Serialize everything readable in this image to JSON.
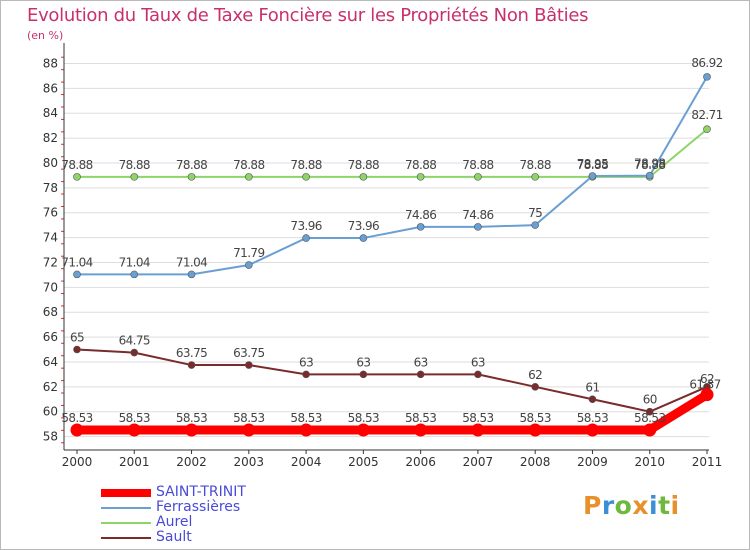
{
  "title": "Evolution du Taux de Taxe Foncière sur les Propriétés Non Bâties",
  "subtitle": "(en %)",
  "logo": {
    "text": "Proxiti",
    "letters": [
      {
        "ch": "P",
        "color": "#e8902a"
      },
      {
        "ch": "r",
        "color": "#3b8fd4"
      },
      {
        "ch": "o",
        "color": "#6fb83f"
      },
      {
        "ch": "x",
        "color": "#e8902a"
      },
      {
        "ch": "i",
        "color": "#3b8fd4"
      },
      {
        "ch": "t",
        "color": "#6fb83f"
      },
      {
        "ch": "i",
        "color": "#e8902a"
      }
    ]
  },
  "chart_data": {
    "type": "line",
    "title": "Evolution du Taux de Taxe Foncière sur les Propriétés Non Bâties",
    "ylabel": "(en %)",
    "xlabel": "",
    "x": [
      "2000",
      "2001",
      "2002",
      "2003",
      "2004",
      "2005",
      "2006",
      "2007",
      "2008",
      "2009",
      "2010",
      "2011"
    ],
    "ylim": [
      57,
      89
    ],
    "yticks": [
      58,
      60,
      62,
      64,
      66,
      68,
      70,
      72,
      74,
      76,
      78,
      80,
      82,
      84,
      86,
      88
    ],
    "grid": "horizontal",
    "legend_position": "bottom-left",
    "series": [
      {
        "name": "SAINT-TRINIT",
        "color": "#ff0000",
        "values": [
          58.53,
          58.53,
          58.53,
          58.53,
          58.53,
          58.53,
          58.53,
          58.53,
          58.53,
          58.53,
          58.53,
          61.37
        ],
        "labels": [
          "58.53",
          "58.53",
          "58.53",
          "58.53",
          "58.53",
          "58.53",
          "58.53",
          "58.53",
          "58.53",
          "58.53",
          "58.53",
          "61.37"
        ]
      },
      {
        "name": "Ferrassières",
        "color": "#6a9fd4",
        "values": [
          71.04,
          71.04,
          71.04,
          71.79,
          73.96,
          73.96,
          74.86,
          74.86,
          75,
          78.95,
          78.98,
          86.92
        ],
        "labels": [
          "71.04",
          "71.04",
          "71.04",
          "71.79",
          "73.96",
          "73.96",
          "74.86",
          "74.86",
          "75",
          "78.95",
          "78.98",
          "86.92"
        ]
      },
      {
        "name": "Aurel",
        "color": "#8fd468",
        "values": [
          78.88,
          78.88,
          78.88,
          78.88,
          78.88,
          78.88,
          78.88,
          78.88,
          78.88,
          78.88,
          78.88,
          82.71
        ],
        "labels": [
          "78.88",
          "78.88",
          "78.88",
          "78.88",
          "78.88",
          "78.88",
          "78.88",
          "78.88",
          "78.88",
          "78.88",
          "78.88",
          "82.71"
        ]
      },
      {
        "name": "Sault",
        "color": "#7a2b2b",
        "values": [
          65,
          64.75,
          63.75,
          63.75,
          63,
          63,
          63,
          63,
          62,
          61,
          60,
          62
        ],
        "labels": [
          "65",
          "64.75",
          "63.75",
          "63.75",
          "63",
          "63",
          "63",
          "63",
          "62",
          "61",
          "60",
          "62"
        ]
      }
    ]
  }
}
